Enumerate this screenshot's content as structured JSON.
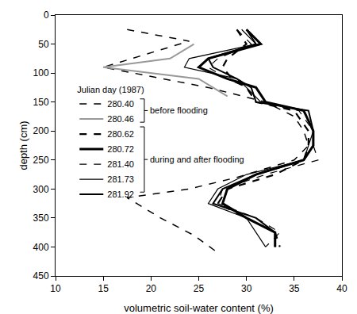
{
  "chart_data": {
    "type": "line",
    "x_label": "volumetric soil-water content (%)",
    "y_label": "depth (cm)",
    "xlim": [
      10,
      40
    ],
    "xticks": [
      10,
      15,
      20,
      25,
      30,
      35,
      40
    ],
    "ylim": [
      0,
      450
    ],
    "yticks": [
      0,
      50,
      100,
      150,
      200,
      250,
      300,
      350,
      400,
      450
    ],
    "grid": false,
    "legend_title": "Julian day (1987)",
    "annotations": [
      {
        "text": "before flooding",
        "series": [
          "280.40",
          "280.46"
        ]
      },
      {
        "text": "during and after flooding",
        "series": [
          "280.62",
          "280.72",
          "281.40",
          "281.73",
          "281.92"
        ]
      }
    ],
    "series": [
      {
        "name": "280.40",
        "color": "#000000",
        "line_style": "dashed",
        "x": [
          17.5,
          24,
          15,
          26,
          32,
          35,
          36,
          36.5,
          35,
          29,
          24,
          17.5,
          21,
          24.5,
          27
        ],
        "y": [
          25,
          45,
          90,
          125,
          150,
          175,
          200,
          225,
          250,
          280,
          300,
          315,
          350,
          380,
          410
        ]
      },
      {
        "name": "280.46",
        "color": "#999999",
        "line_style": "solid",
        "x": [
          24.5,
          22,
          15,
          25,
          28
        ],
        "y": [
          50,
          75,
          90,
          110,
          140
        ]
      },
      {
        "name": "280.62",
        "color": "#000000",
        "line_style": "dashed",
        "x": [
          29,
          30,
          28,
          27.5,
          28.5,
          30,
          31,
          35,
          36.5,
          36.5,
          36,
          33,
          28,
          27,
          30,
          33,
          33.5
        ],
        "y": [
          25,
          50,
          75,
          90,
          110,
          125,
          150,
          165,
          200,
          225,
          250,
          275,
          300,
          325,
          350,
          375,
          400
        ]
      },
      {
        "name": "280.72",
        "color": "#000000",
        "line_style": "solid",
        "x": [
          30,
          31.5,
          26,
          25,
          28,
          31,
          32,
          36,
          37,
          37,
          36,
          31,
          28,
          27.5,
          30,
          33,
          33
        ],
        "y": [
          25,
          50,
          75,
          90,
          110,
          125,
          150,
          165,
          200,
          225,
          250,
          275,
          300,
          325,
          350,
          375,
          400
        ]
      },
      {
        "name": "281.40",
        "color": "#000000",
        "line_style": "dashed",
        "x": [
          29,
          30.5,
          27,
          26,
          28,
          30,
          31,
          35.5,
          37,
          37,
          37.5,
          32,
          27.5,
          27,
          31,
          33.5,
          32
        ],
        "y": [
          25,
          50,
          75,
          90,
          110,
          125,
          150,
          165,
          200,
          225,
          250,
          275,
          300,
          325,
          350,
          375,
          400
        ]
      },
      {
        "name": "281.73",
        "color": "#000000",
        "line_style": "solid",
        "x": [
          29.5,
          31,
          24,
          23.5,
          29,
          30,
          31.5,
          36,
          37,
          36.5,
          36,
          30,
          27,
          26,
          30,
          31,
          32
        ],
        "y": [
          25,
          50,
          75,
          90,
          110,
          125,
          150,
          165,
          200,
          225,
          250,
          275,
          300,
          325,
          350,
          375,
          400
        ]
      },
      {
        "name": "281.92",
        "color": "#000000",
        "line_style": "solid",
        "x": [
          30,
          31,
          26,
          26.5,
          29,
          30.5,
          31,
          36.5,
          37,
          37,
          36,
          31,
          27.5,
          26.5,
          31,
          33,
          33
        ],
        "y": [
          25,
          50,
          75,
          90,
          110,
          125,
          150,
          165,
          200,
          225,
          250,
          275,
          300,
          325,
          350,
          375,
          400
        ]
      }
    ]
  }
}
